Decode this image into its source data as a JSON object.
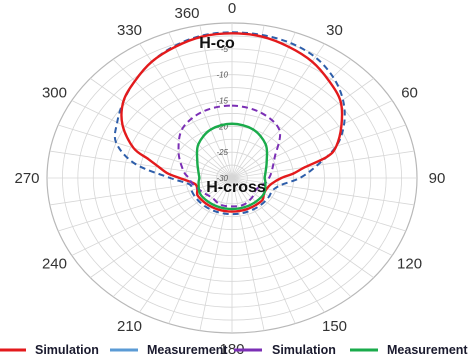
{
  "chart_data": {
    "type": "polar",
    "title": "",
    "angle_unit": "deg",
    "angle_ticks": [
      "0",
      "30",
      "60",
      "90",
      "120",
      "150",
      "180",
      "210",
      "240",
      "270",
      "300",
      "330",
      "360"
    ],
    "radial_ticks": [
      "-5",
      "-10",
      "-15",
      "-20",
      "-25",
      "-30"
    ],
    "radial_range": [
      -30,
      0
    ],
    "grid": true,
    "annotations": [
      {
        "text": "H-co",
        "theta": 345,
        "r": -3
      },
      {
        "text": "H-cross",
        "theta": 100,
        "r": -27
      }
    ],
    "legend_position": "bottom",
    "legend": [
      {
        "label": "Simulation",
        "color": "#e31a1c",
        "style": "solid"
      },
      {
        "label": "Measurement",
        "color": "#5b9bd5",
        "style": "solid"
      },
      {
        "label": "Simulation",
        "color": "#7b2fb5",
        "style": "solid"
      },
      {
        "label": "Measurement",
        "color": "#1aab4b",
        "style": "solid"
      }
    ],
    "series": [
      {
        "name": "Simulation",
        "group": "H-co",
        "color": "#e31a1c",
        "dash": "solid",
        "theta": [
          0,
          10,
          20,
          30,
          40,
          50,
          60,
          70,
          75,
          80,
          85,
          90,
          100,
          110,
          120,
          130,
          140,
          150,
          160,
          170,
          180,
          190,
          200,
          210,
          220,
          230,
          240,
          250,
          260,
          270,
          275,
          280,
          285,
          290,
          300,
          310,
          320,
          330,
          340,
          350
        ],
        "r": [
          -2,
          -2.2,
          -3,
          -4,
          -5.5,
          -7,
          -9.5,
          -12,
          -14,
          -18,
          -20,
          -22,
          -23.5,
          -24,
          -24,
          -23.5,
          -23.5,
          -23.5,
          -23.5,
          -23.5,
          -23.5,
          -23.5,
          -23.5,
          -23.5,
          -23.5,
          -23.5,
          -23.5,
          -24,
          -23.8,
          -21.5,
          -19.5,
          -18,
          -16,
          -13,
          -9.5,
          -7,
          -5.5,
          -4,
          -3,
          -2.2
        ]
      },
      {
        "name": "Measurement",
        "group": "H-co",
        "color": "#2e5eaa",
        "dash": "dashed",
        "theta": [
          0,
          10,
          20,
          30,
          40,
          50,
          60,
          70,
          80,
          90,
          100,
          110,
          120,
          130,
          140,
          150,
          160,
          170,
          180,
          190,
          200,
          210,
          220,
          230,
          240,
          250,
          260,
          270,
          280,
          290,
          300,
          310,
          320,
          330,
          340,
          350
        ],
        "r": [
          -1.8,
          -1.9,
          -2.2,
          -3,
          -4.5,
          -6.5,
          -9,
          -12,
          -16,
          -19,
          -22,
          -23,
          -23,
          -23,
          -23,
          -23,
          -23,
          -23,
          -23,
          -23,
          -23,
          -23,
          -23,
          -23,
          -23,
          -23,
          -23,
          -20,
          -14,
          -10,
          -8.5,
          -7,
          -5.5,
          -4,
          -2.8,
          -2
        ]
      },
      {
        "name": "Simulation",
        "group": "H-cross",
        "color": "#7b2fb5",
        "dash": "dashed",
        "theta": [
          0,
          20,
          40,
          60,
          80,
          90,
          100,
          120,
          140,
          160,
          180,
          200,
          220,
          240,
          260,
          270,
          280,
          300,
          320,
          340
        ],
        "r": [
          -16,
          -16.5,
          -18,
          -22,
          -23.5,
          -24,
          -24.5,
          -25.5,
          -25,
          -24.5,
          -24.5,
          -24.5,
          -25,
          -24.5,
          -23.5,
          -23,
          -22,
          -20,
          -17.5,
          -16.3
        ]
      },
      {
        "name": "Measurement",
        "group": "H-cross",
        "color": "#1aab4b",
        "dash": "solid",
        "theta": [
          0,
          20,
          40,
          60,
          80,
          90,
          100,
          120,
          140,
          160,
          180,
          200,
          220,
          240,
          260,
          270,
          280,
          300,
          320,
          340
        ],
        "r": [
          -19.5,
          -20,
          -21.5,
          -23.5,
          -24.5,
          -24.7,
          -24.5,
          -24,
          -24,
          -24,
          -24,
          -24,
          -24,
          -24,
          -24.5,
          -24.7,
          -24.5,
          -23.5,
          -21.5,
          -20
        ]
      }
    ]
  }
}
